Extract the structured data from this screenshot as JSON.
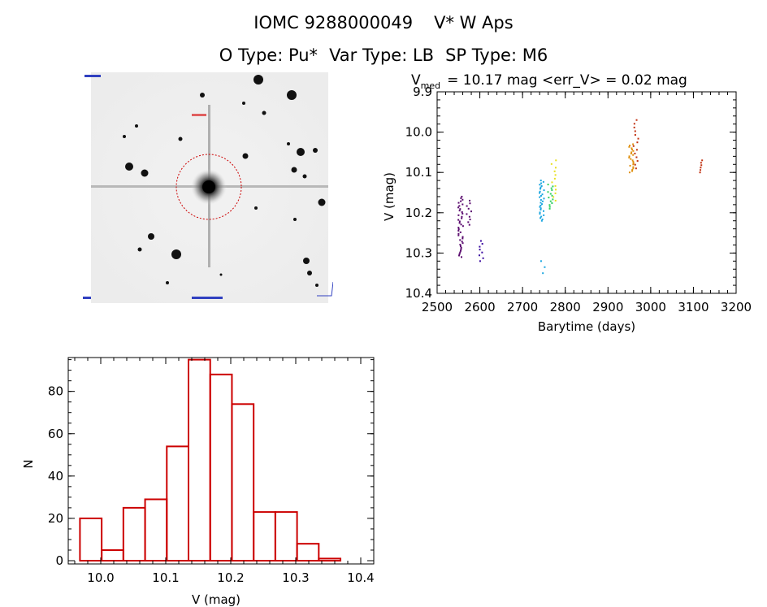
{
  "header": {
    "star_id": "IOMC 9288000049",
    "star_name": "V* W Aps",
    "otype": "O Type: Pu*",
    "vartype": "Var Type: LB",
    "sptype": "SP Type: M6"
  },
  "colors": {
    "histogram": "#cc0000",
    "circle": "#cc0000",
    "epochs": [
      "#5a0a6e",
      "#3a0aa0",
      "#1aa6e0",
      "#40c8e8",
      "#30d060",
      "#e8e020",
      "#e09010",
      "#c03010"
    ]
  },
  "light_curve": {
    "title_v": "V",
    "title_sub": "med",
    "title_rest": "= 10.17 mag <err_V> = 0.02 mag",
    "xlabel": "Barytime (days)",
    "ylabel": "V (mag)"
  },
  "chart_data": [
    {
      "type": "scatter",
      "xlabel": "Barytime (days)",
      "ylabel": "V (mag)",
      "xlim": [
        2500,
        3200
      ],
      "ylim": [
        10.4,
        9.9
      ],
      "y_inverted": true,
      "x_ticks": [
        2500,
        2600,
        2700,
        2800,
        2900,
        3000,
        3100,
        3200
      ],
      "x_tick_labels": [
        "2500",
        "2600",
        "2700",
        "2800",
        "2900",
        "3000",
        "3100",
        "3200"
      ],
      "y_ticks": [
        9.9,
        10.0,
        10.1,
        10.2,
        10.3,
        10.4
      ],
      "y_tick_labels": [
        "9.9",
        "10.0",
        "10.1",
        "10.2",
        "10.3",
        "10.4"
      ],
      "series": [
        {
          "x": 2555,
          "ymin": 10.16,
          "ymax": 10.31,
          "n": 40
        },
        {
          "x": 2575,
          "ymin": 10.17,
          "ymax": 10.23,
          "n": 10
        },
        {
          "x": 2603,
          "ymin": 10.27,
          "ymax": 10.32,
          "n": 8
        },
        {
          "x": 2745,
          "ymin": 10.12,
          "ymax": 10.22,
          "n": 30
        },
        {
          "x": 2747,
          "ymin": 10.32,
          "ymax": 10.35,
          "n": 3
        },
        {
          "x": 2765,
          "ymin": 10.13,
          "ymax": 10.19,
          "n": 14
        },
        {
          "x": 2773,
          "ymin": 10.07,
          "ymax": 10.17,
          "n": 12
        },
        {
          "x": 2955,
          "ymin": 10.03,
          "ymax": 10.1,
          "n": 22
        },
        {
          "x": 2965,
          "ymin": 9.97,
          "ymax": 10.09,
          "n": 14
        },
        {
          "x": 3120,
          "ymin": 10.07,
          "ymax": 10.1,
          "n": 6
        }
      ]
    },
    {
      "type": "bar",
      "xlabel": "V (mag)",
      "ylabel": "N",
      "xlim": [
        9.95,
        10.42
      ],
      "ylim": [
        0,
        96
      ],
      "x_ticks": [
        10.0,
        10.1,
        10.2,
        10.3,
        10.4
      ],
      "x_tick_labels": [
        "10.0",
        "10.1",
        "10.2",
        "10.3",
        "10.4"
      ],
      "y_ticks": [
        0,
        20,
        40,
        60,
        80
      ],
      "y_tick_labels": [
        "0",
        "20",
        "40",
        "60",
        "80"
      ],
      "bin_edges": [
        9.968,
        10.0014,
        10.0348,
        10.0682,
        10.1016,
        10.135,
        10.1684,
        10.2018,
        10.2352,
        10.2686,
        10.302,
        10.3354,
        10.3688
      ],
      "values": [
        20,
        5,
        25,
        29,
        54,
        95,
        88,
        74,
        23,
        23,
        8,
        1
      ]
    }
  ]
}
